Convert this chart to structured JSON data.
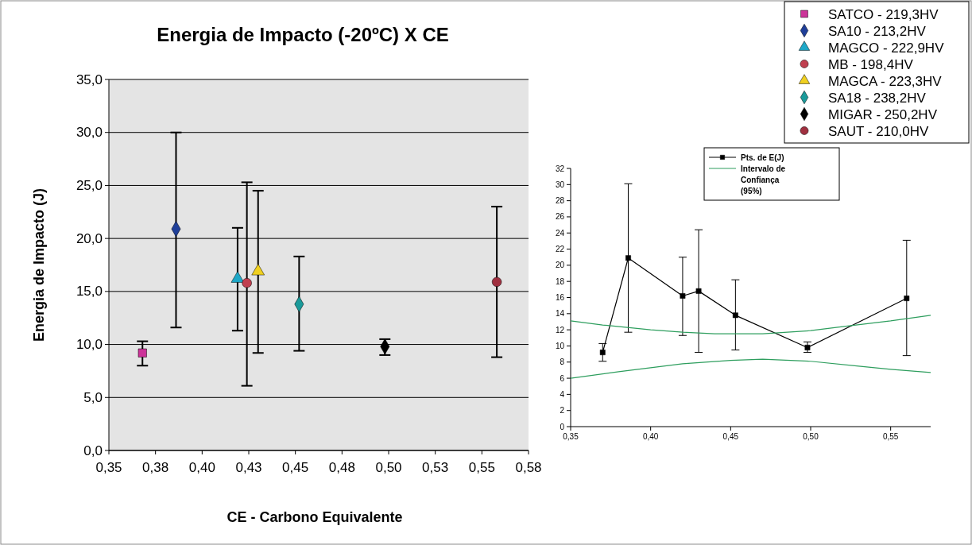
{
  "chart_data": [
    {
      "type": "scatter",
      "title": "Energia de Impacto (-20ºC) X CE",
      "xlabel": "CE - Carbono Equivalente",
      "ylabel": "Energia de Impacto (J)",
      "xlim": [
        0.35,
        0.575
      ],
      "xticks": [
        {
          "value": 0.35,
          "label": "0,35"
        },
        {
          "value": 0.375,
          "label": "0,38"
        },
        {
          "value": 0.4,
          "label": "0,40"
        },
        {
          "value": 0.425,
          "label": "0,43"
        },
        {
          "value": 0.45,
          "label": "0,45"
        },
        {
          "value": 0.475,
          "label": "0,48"
        },
        {
          "value": 0.5,
          "label": "0,50"
        },
        {
          "value": 0.525,
          "label": "0,53"
        },
        {
          "value": 0.55,
          "label": "0,55"
        },
        {
          "value": 0.575,
          "label": "0,58"
        }
      ],
      "ylim": [
        0,
        35
      ],
      "yticks": [
        {
          "value": 0,
          "label": "0,0"
        },
        {
          "value": 5,
          "label": "5,0"
        },
        {
          "value": 10,
          "label": "10,0"
        },
        {
          "value": 15,
          "label": "15,0"
        },
        {
          "value": 20,
          "label": "20,0"
        },
        {
          "value": 25,
          "label": "25,0"
        },
        {
          "value": 30,
          "label": "30,0"
        },
        {
          "value": 35,
          "label": "35,0"
        }
      ],
      "grid": "y",
      "legend": "top right",
      "series": [
        {
          "name": "SATCO - 219,3HV",
          "color": "#cc3399",
          "marker": "square",
          "x": [
            0.368
          ],
          "values": [
            9.2
          ],
          "errors": [
            [
              8.0,
              10.3
            ]
          ]
        },
        {
          "name": "SA10 - 213,2HV",
          "color": "#1f3f99",
          "marker": "diamond",
          "x": [
            0.386
          ],
          "values": [
            20.9
          ],
          "errors": [
            [
              11.6,
              30.0
            ]
          ]
        },
        {
          "name": "MAGCO - 222,9HV",
          "color": "#1fa8c8",
          "marker": "triangle",
          "x": [
            0.419
          ],
          "values": [
            16.2
          ],
          "errors": [
            [
              11.3,
              21.0
            ]
          ]
        },
        {
          "name": "MB - 198,4HV",
          "color": "#c04050",
          "marker": "circle",
          "x": [
            0.424
          ],
          "values": [
            15.8
          ],
          "errors": [
            [
              6.1,
              25.3
            ]
          ]
        },
        {
          "name": "MAGCA - 223,3HV",
          "color": "#f0d020",
          "marker": "triangle",
          "x": [
            0.43
          ],
          "values": [
            16.9
          ],
          "errors": [
            [
              9.2,
              24.5
            ]
          ]
        },
        {
          "name": "SA18 - 238,2HV",
          "color": "#1a9a9a",
          "marker": "diamond",
          "x": [
            0.452
          ],
          "values": [
            13.8
          ],
          "errors": [
            [
              9.4,
              18.3
            ]
          ]
        },
        {
          "name": "MIGAR - 250,2HV",
          "color": "#000000",
          "marker": "diamond",
          "x": [
            0.498
          ],
          "values": [
            9.8
          ],
          "errors": [
            [
              9.0,
              10.5
            ]
          ]
        },
        {
          "name": "SAUT - 210,0HV",
          "color": "#a03040",
          "marker": "circle",
          "x": [
            0.558
          ],
          "values": [
            15.9
          ],
          "errors": [
            [
              8.8,
              23.0
            ]
          ]
        }
      ]
    },
    {
      "type": "line",
      "xlim": [
        0.35,
        0.575
      ],
      "xticks": [
        {
          "value": 0.35,
          "label": "0,35"
        },
        {
          "value": 0.4,
          "label": "0,40"
        },
        {
          "value": 0.45,
          "label": "0,45"
        },
        {
          "value": 0.5,
          "label": "0,50"
        },
        {
          "value": 0.55,
          "label": "0,55"
        }
      ],
      "ylim": [
        0,
        32
      ],
      "yticks": [
        0,
        2,
        4,
        6,
        8,
        10,
        12,
        14,
        16,
        18,
        20,
        22,
        24,
        26,
        28,
        30,
        32
      ],
      "legend": "top right",
      "series": [
        {
          "name": "Pts. de E(J)",
          "color": "#000000",
          "marker": "square",
          "x": [
            0.37,
            0.386,
            0.42,
            0.43,
            0.453,
            0.498,
            0.56
          ],
          "values": [
            9.2,
            20.9,
            16.2,
            16.8,
            13.8,
            9.8,
            15.9
          ],
          "errors": [
            [
              8.1,
              10.3
            ],
            [
              11.7,
              30.1
            ],
            [
              11.3,
              21.0
            ],
            [
              9.2,
              24.4
            ],
            [
              9.5,
              18.2
            ],
            [
              9.2,
              10.5
            ],
            [
              8.8,
              23.1
            ]
          ]
        },
        {
          "name": "Intervalo de Confiança (95%)",
          "color": "#2e9e5e",
          "marker": "none",
          "x": [
            0.35,
            0.37,
            0.4,
            0.42,
            0.44,
            0.47,
            0.5,
            0.52,
            0.55,
            0.575
          ],
          "values": [
            13.1,
            12.6,
            12.0,
            11.7,
            11.5,
            11.5,
            11.9,
            12.4,
            13.1,
            13.8
          ]
        },
        {
          "color": "#2e9e5e",
          "marker": "none",
          "x": [
            0.35,
            0.38,
            0.4,
            0.42,
            0.45,
            0.47,
            0.5,
            0.53,
            0.55,
            0.575
          ],
          "values": [
            6.0,
            6.8,
            7.3,
            7.8,
            8.2,
            8.35,
            8.1,
            7.5,
            7.1,
            6.7
          ]
        }
      ]
    }
  ]
}
